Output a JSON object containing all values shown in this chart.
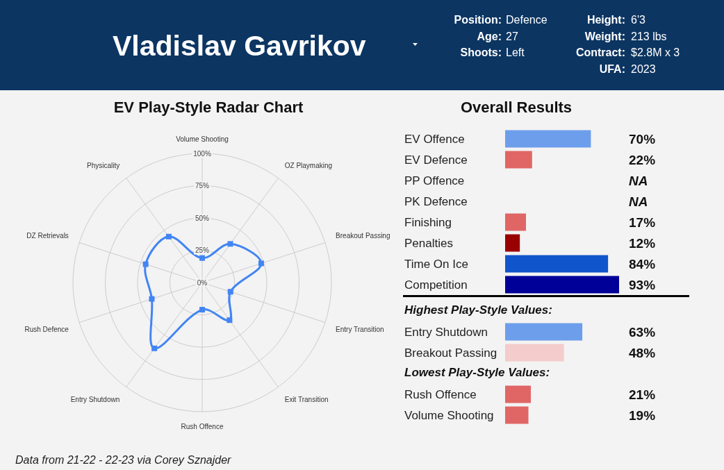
{
  "chart_data": [
    {
      "type": "other",
      "title": "Vladislav Gavrikov",
      "annotations": [
        "Position: Defence",
        "Age: 27",
        "Shoots: Left",
        "Height: 6'3",
        "Weight: 213 lbs",
        "Contract: $2.8M x 3",
        "UFA: 2023"
      ]
    },
    {
      "type": "radar",
      "title": "EV Play-Style Radar Chart",
      "categories": [
        "Volume Shooting",
        "OZ Playmaking",
        "Breakout Passing",
        "Entry Transition",
        "Exit Transition",
        "Rush Offence",
        "Entry Shutdown",
        "Rush Defence",
        "DZ Retrievals",
        "Physicality"
      ],
      "series": [
        {
          "color": "#4285f4",
          "values": [
            19,
            37,
            48,
            23,
            36,
            21,
            63,
            41,
            46,
            44
          ]
        }
      ],
      "ylim": [
        0,
        100
      ],
      "yticks": [
        {
          "value": 0,
          "label": "0%"
        },
        {
          "value": 25,
          "label": "25%"
        },
        {
          "value": 50,
          "label": "50%"
        },
        {
          "value": 75,
          "label": "75%"
        },
        {
          "value": 100,
          "label": "100%"
        }
      ],
      "grid": true,
      "marker": "square"
    },
    {
      "type": "bar",
      "orientation": "horizontal",
      "title": "Overall Results",
      "categories": [
        "EV Offence",
        "EV Defence",
        "PP Offence",
        "PK Defence",
        "Finishing",
        "Penalties",
        "Time On Ice",
        "Competition"
      ],
      "values": [
        70,
        22,
        null,
        null,
        17,
        12,
        84,
        93
      ],
      "colors": [
        "#6d9eeb",
        "#e06666",
        null,
        null,
        "#e06666",
        "#990000",
        "#1155cc",
        "#000099"
      ],
      "value_labels": [
        "70%",
        "22%",
        "NA",
        "NA",
        "17%",
        "12%",
        "84%",
        "93%"
      ],
      "tick_labels": "y"
    },
    {
      "type": "bar",
      "orientation": "horizontal",
      "title": "Highest Play-Style Values:",
      "categories": [
        "Entry Shutdown",
        "Breakout Passing"
      ],
      "values": [
        63,
        48
      ],
      "colors": [
        "#6d9eeb",
        "#f4cccc"
      ],
      "value_labels": [
        "63%",
        "48%"
      ],
      "tick_labels": "y"
    },
    {
      "type": "bar",
      "orientation": "horizontal",
      "title": "Lowest Play-Style Values:",
      "categories": [
        "Rush Offence",
        "Volume Shooting"
      ],
      "values": [
        21,
        19
      ],
      "colors": [
        "#e06666",
        "#e06666"
      ],
      "value_labels": [
        "21%",
        "19%"
      ],
      "tick_labels": "y"
    },
    {
      "type": "other",
      "annotations": [
        "Data from 21-22 - 22-23 via Corey Sznajder"
      ]
    }
  ]
}
